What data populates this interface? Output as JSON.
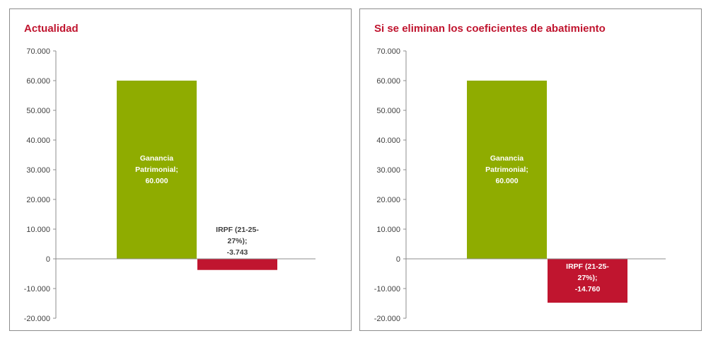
{
  "colors": {
    "gain": "#8fac00",
    "tax": "#c0152f",
    "title": "#c0152f",
    "axis": "#8c8c8c"
  },
  "chart_data": [
    {
      "type": "bar",
      "title": "Actualidad",
      "ylim": [
        -20000,
        70000
      ],
      "yticks": [
        -20000,
        -10000,
        0,
        10000,
        20000,
        30000,
        40000,
        50000,
        60000,
        70000
      ],
      "ytick_labels": [
        "-20.000",
        "-10.000",
        "0",
        "10.000",
        "20.000",
        "30.000",
        "40.000",
        "50.000",
        "60.000",
        "70.000"
      ],
      "grid": false,
      "bars": [
        {
          "category": "Ganancia Patrimonial",
          "value": 60000,
          "label_lines": [
            "Ganancia",
            "Patrimonial;",
            "60.000"
          ],
          "label_color": "#ffffff",
          "color_key": "gain"
        },
        {
          "category": "IRPF (21-25-27%)",
          "value": -3743,
          "label_lines": [
            "IRPF (21-25-",
            "27%);",
            "-3.743"
          ],
          "label_color": "#404040",
          "color_key": "tax"
        }
      ]
    },
    {
      "type": "bar",
      "title": "Si se eliminan los coeficientes de abatimiento",
      "ylim": [
        -20000,
        70000
      ],
      "yticks": [
        -20000,
        -10000,
        0,
        10000,
        20000,
        30000,
        40000,
        50000,
        60000,
        70000
      ],
      "ytick_labels": [
        "-20.000",
        "-10.000",
        "0",
        "10.000",
        "20.000",
        "30.000",
        "40.000",
        "50.000",
        "60.000",
        "70.000"
      ],
      "grid": false,
      "bars": [
        {
          "category": "Ganancia Patrimonial",
          "value": 60000,
          "label_lines": [
            "Ganancia",
            "Patrimonial;",
            "60.000"
          ],
          "label_color": "#ffffff",
          "color_key": "gain"
        },
        {
          "category": "IRPF (21-25-27%)",
          "value": -14760,
          "label_lines": [
            "IRPF (21-25-",
            "27%);",
            "-14.760"
          ],
          "label_color": "#ffffff",
          "color_key": "tax"
        }
      ]
    }
  ]
}
